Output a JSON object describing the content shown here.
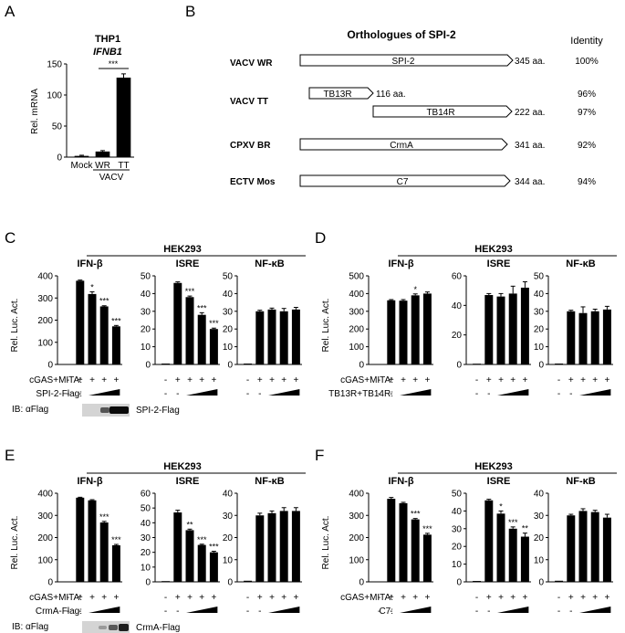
{
  "panel_letters": [
    "A",
    "B",
    "C",
    "D",
    "E",
    "F"
  ],
  "panel_a": {
    "cell": "THP1",
    "gene": "IFNB1",
    "ylabel": "Rel. mRNA",
    "group_label": "VACV",
    "significance": "***"
  },
  "panel_b": {
    "title": "Orthologues of SPI-2",
    "identity_header": "Identity",
    "rows": [
      {
        "virus": "VACV WR",
        "proteins": [
          {
            "name": "SPI-2",
            "length": "345 aa.",
            "identity": "100%"
          }
        ]
      },
      {
        "virus": "VACV TT",
        "proteins": [
          {
            "name": "TB13R",
            "length": "116 aa.",
            "identity": "96%"
          },
          {
            "name": "TB14R",
            "length": "222 aa.",
            "identity": "97%"
          }
        ]
      },
      {
        "virus": "CPXV BR",
        "proteins": [
          {
            "name": "CrmA",
            "length": "341 aa.",
            "identity": "92%"
          }
        ]
      },
      {
        "virus": "ECTV Mos",
        "proteins": [
          {
            "name": "C7",
            "length": "344 aa.",
            "identity": "94%"
          }
        ]
      }
    ]
  },
  "reporter_panels": [
    {
      "letter": "C",
      "cell": "HEK293",
      "ylabel": "Rel. Luc. Act.",
      "row1": "cGAS+MITA:",
      "row2": "SPI-2-Flag:",
      "row1_signs": [
        "-",
        "+",
        "+",
        "+",
        "+"
      ],
      "row2_signs": [
        "-",
        "-"
      ],
      "blot": {
        "label": "IB: αFlag",
        "name": "SPI-2-Flag"
      }
    },
    {
      "letter": "D",
      "cell": "HEK293",
      "ylabel": "Rel. Luc. Act.",
      "row1": "cGAS+MITA:",
      "row2": "TB13R+TB14R:",
      "row1_signs": [
        "-",
        "+",
        "+",
        "+",
        "+"
      ],
      "row2_signs": [
        "-",
        "-"
      ],
      "blot": null
    },
    {
      "letter": "E",
      "cell": "HEK293",
      "ylabel": "Rel. Luc. Act.",
      "row1": "cGAS+MITA:",
      "row2": "CrmA-Flag:",
      "row1_signs": [
        "-",
        "+",
        "+",
        "+",
        "+"
      ],
      "row2_signs": [
        "-",
        "-"
      ],
      "blot": {
        "label": "IB: αFlag",
        "name": "CrmA-Flag"
      }
    },
    {
      "letter": "F",
      "cell": "HEK293",
      "ylabel": "Rel. Luc. Act.",
      "row1": "cGAS+MITA:",
      "row2": "C7:",
      "row1_signs": [
        "-",
        "+",
        "+",
        "+",
        "+"
      ],
      "row2_signs": [
        "-",
        "-"
      ],
      "blot": null
    }
  ],
  "chart_data": [
    {
      "id": "A",
      "type": "bar",
      "title": "THP1 IFNB1",
      "ylabel": "Rel. mRNA",
      "categories": [
        "Mock",
        "WR",
        "TT"
      ],
      "values": [
        2,
        9,
        128
      ],
      "errors": [
        1,
        1.5,
        6
      ],
      "ylim": [
        0,
        150
      ],
      "yticks": [
        0,
        50,
        100,
        150
      ],
      "significance": [
        "",
        "",
        "***"
      ]
    },
    {
      "id": "C1",
      "type": "bar",
      "title": "IFN-β",
      "ylim": [
        0,
        400
      ],
      "yticks": [
        0,
        100,
        200,
        300,
        400
      ],
      "values": [
        2,
        378,
        318,
        262,
        172
      ],
      "errors": [
        0,
        3,
        10,
        3,
        4
      ],
      "significance": [
        "",
        "",
        "*",
        "***",
        "***"
      ]
    },
    {
      "id": "C2",
      "type": "bar",
      "title": "ISRE",
      "ylim": [
        0,
        50
      ],
      "yticks": [
        0,
        10,
        20,
        30,
        40,
        50
      ],
      "values": [
        0.5,
        46,
        38,
        28,
        20
      ],
      "errors": [
        0,
        0.6,
        0.6,
        1.2,
        0.5
      ],
      "significance": [
        "",
        "",
        "***",
        "***",
        "***"
      ]
    },
    {
      "id": "C3",
      "type": "bar",
      "title": "NF-κB",
      "ylim": [
        0,
        50
      ],
      "yticks": [
        0,
        10,
        20,
        30,
        40,
        50
      ],
      "values": [
        0.5,
        30,
        31,
        30,
        31
      ],
      "errors": [
        0,
        0.6,
        0.8,
        1.6,
        1.2
      ],
      "significance": [
        "",
        "",
        "",
        "",
        ""
      ]
    },
    {
      "id": "D1",
      "type": "bar",
      "title": "IFN-β",
      "ylim": [
        0,
        500
      ],
      "yticks": [
        0,
        100,
        200,
        300,
        400,
        500
      ],
      "values": [
        2,
        362,
        360,
        390,
        400
      ],
      "errors": [
        0,
        4,
        6,
        8,
        9
      ],
      "significance": [
        "",
        "",
        "",
        "*",
        ""
      ]
    },
    {
      "id": "D2",
      "type": "bar",
      "title": "ISRE",
      "ylim": [
        0,
        60
      ],
      "yticks": [
        0,
        20,
        40,
        60
      ],
      "values": [
        0.5,
        47,
        46,
        48,
        52
      ],
      "errors": [
        0,
        1,
        2,
        5,
        4
      ],
      "significance": [
        "",
        "",
        "",
        "",
        ""
      ]
    },
    {
      "id": "D3",
      "type": "bar",
      "title": "NF-κB",
      "ylim": [
        0,
        50
      ],
      "yticks": [
        0,
        10,
        20,
        30,
        40,
        50
      ],
      "values": [
        0.5,
        30,
        29,
        30,
        31
      ],
      "errors": [
        0,
        0.6,
        3.5,
        1.2,
        1.8
      ],
      "significance": [
        "",
        "",
        "",
        "",
        ""
      ]
    },
    {
      "id": "E1",
      "type": "bar",
      "title": "IFN-β",
      "ylim": [
        0,
        400
      ],
      "yticks": [
        0,
        100,
        200,
        300,
        400
      ],
      "values": [
        2,
        380,
        368,
        268,
        165
      ],
      "errors": [
        0,
        2,
        3,
        5,
        4
      ],
      "significance": [
        "",
        "",
        "",
        "***",
        "***"
      ]
    },
    {
      "id": "E2",
      "type": "bar",
      "title": "ISRE",
      "ylim": [
        0,
        60
      ],
      "yticks": [
        0,
        10,
        20,
        30,
        40,
        50,
        60
      ],
      "values": [
        0.5,
        47,
        35,
        25,
        20
      ],
      "errors": [
        0,
        1.5,
        0.7,
        0.5,
        0.7
      ],
      "significance": [
        "",
        "",
        "**",
        "***",
        "***"
      ]
    },
    {
      "id": "E3",
      "type": "bar",
      "title": "NF-κB",
      "ylim": [
        0,
        40
      ],
      "yticks": [
        0,
        10,
        20,
        30,
        40
      ],
      "values": [
        0.5,
        30,
        31,
        32,
        32
      ],
      "errors": [
        0,
        1,
        1,
        1.5,
        1.5
      ],
      "significance": [
        "",
        "",
        "",
        "",
        ""
      ]
    },
    {
      "id": "F1",
      "type": "bar",
      "title": "IFN-β",
      "ylim": [
        0,
        400
      ],
      "yticks": [
        0,
        100,
        200,
        300,
        400
      ],
      "values": [
        2,
        375,
        355,
        282,
        213
      ],
      "errors": [
        0,
        6,
        4,
        4,
        6
      ],
      "significance": [
        "",
        "",
        "",
        "***",
        "***"
      ]
    },
    {
      "id": "F2",
      "type": "bar",
      "title": "ISRE",
      "ylim": [
        0,
        50
      ],
      "yticks": [
        0,
        10,
        20,
        30,
        40,
        50
      ],
      "values": [
        0.5,
        46,
        38.5,
        30,
        25.5
      ],
      "errors": [
        0,
        0.6,
        1.5,
        1,
        2
      ],
      "significance": [
        "",
        "",
        "*",
        "***",
        "**"
      ]
    },
    {
      "id": "F3",
      "type": "bar",
      "title": "NF-κB",
      "ylim": [
        0,
        40
      ],
      "yticks": [
        0,
        10,
        20,
        30,
        40
      ],
      "values": [
        0.5,
        30,
        32,
        31.5,
        29
      ],
      "errors": [
        0,
        0.5,
        1,
        0.8,
        1.5
      ],
      "significance": [
        "",
        "",
        "",
        "",
        ""
      ]
    }
  ]
}
